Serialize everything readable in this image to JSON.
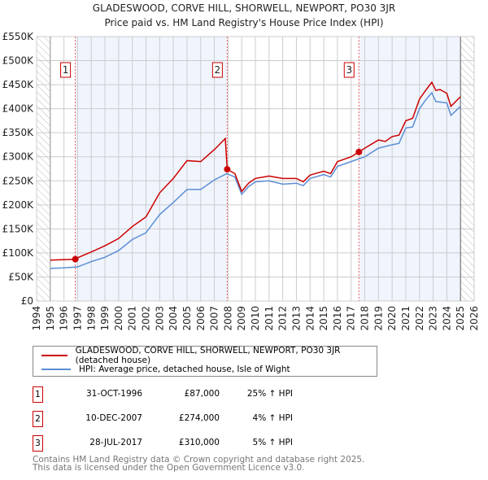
{
  "chart_data": {
    "type": "line",
    "title": "GLADESWOOD, CORVE HILL, SHORWELL, NEWPORT, PO30 3JR",
    "subtitle": "Price paid vs. HM Land Registry's House Price Index (HPI)",
    "xlim": [
      1994,
      2026
    ],
    "ylim": [
      0,
      550000
    ],
    "yticks": [
      0,
      50000,
      100000,
      150000,
      200000,
      250000,
      300000,
      350000,
      400000,
      450000,
      500000,
      550000
    ],
    "ytick_labels": [
      "£0",
      "£50K",
      "£100K",
      "£150K",
      "£200K",
      "£250K",
      "£300K",
      "£350K",
      "£400K",
      "£450K",
      "£500K",
      "£550K"
    ],
    "xticks": [
      1994,
      1995,
      1996,
      1997,
      1998,
      1999,
      2000,
      2001,
      2002,
      2003,
      2004,
      2005,
      2006,
      2007,
      2008,
      2009,
      2010,
      2011,
      2012,
      2013,
      2014,
      2015,
      2016,
      2017,
      2018,
      2019,
      2020,
      2021,
      2022,
      2023,
      2024,
      2025,
      2026
    ],
    "grid": true,
    "legend_position": "below",
    "series": [
      {
        "name": "GLADESWOOD, CORVE HILL, SHORWELL, NEWPORT, PO30 3JR (detached house)",
        "color": "#cc0000",
        "x": [
          1995,
          1996,
          1996.83,
          1997,
          1998,
          1999,
          2000,
          2001,
          2002,
          2003,
          2004,
          2005,
          2006,
          2007,
          2007.8,
          2007.94,
          2008.5,
          2009,
          2009.5,
          2010,
          2011,
          2012,
          2013,
          2013.5,
          2014,
          2015,
          2015.5,
          2016,
          2017,
          2017.57,
          2018,
          2019,
          2019.5,
          2020,
          2020.5,
          2021,
          2021.5,
          2022,
          2022.5,
          2022.9,
          2023.2,
          2023.5,
          2024,
          2024.3,
          2025
        ],
        "y": [
          85000,
          86000,
          87000,
          90000,
          102000,
          115000,
          130000,
          155000,
          175000,
          225000,
          255000,
          292000,
          290000,
          315000,
          338000,
          274000,
          265000,
          228000,
          245000,
          255000,
          260000,
          255000,
          255000,
          248000,
          262000,
          270000,
          265000,
          290000,
          300000,
          310000,
          318000,
          335000,
          332000,
          342000,
          345000,
          375000,
          380000,
          420000,
          440000,
          455000,
          438000,
          440000,
          432000,
          405000,
          425000
        ]
      },
      {
        "name": "HPI: Average price, detached house, Isle of Wight",
        "color": "#5b8fd4",
        "x": [
          1995,
          1996,
          1997,
          1998,
          1999,
          2000,
          2001,
          2002,
          2003,
          2004,
          2005,
          2006,
          2007,
          2007.9,
          2008.5,
          2009,
          2009.5,
          2010,
          2011,
          2012,
          2013,
          2013.5,
          2014,
          2015,
          2015.5,
          2016,
          2017,
          2018,
          2019,
          2020,
          2020.5,
          2021,
          2021.5,
          2022,
          2022.5,
          2022.9,
          2023.2,
          2024,
          2024.3,
          2025
        ],
        "y": [
          68000,
          69000,
          71000,
          82000,
          91000,
          105000,
          128000,
          142000,
          180000,
          205000,
          232000,
          232000,
          252000,
          265000,
          258000,
          222000,
          238000,
          248000,
          250000,
          243000,
          245000,
          240000,
          255000,
          263000,
          258000,
          280000,
          290000,
          300000,
          318000,
          325000,
          328000,
          360000,
          362000,
          400000,
          420000,
          433000,
          415000,
          412000,
          386000,
          405000
        ]
      }
    ],
    "sales": [
      {
        "label": "1",
        "x": 1996.83,
        "y": 87000,
        "date": "31-OCT-1996",
        "price": "£87,000",
        "hpi": "25% ↑ HPI"
      },
      {
        "label": "2",
        "x": 2007.94,
        "y": 274000,
        "date": "10-DEC-2007",
        "price": "£274,000",
        "hpi": "4% ↑ HPI"
      },
      {
        "label": "3",
        "x": 2017.57,
        "y": 310000,
        "date": "28-JUL-2017",
        "price": "£310,000",
        "hpi": "5% ↑ HPI"
      }
    ]
  },
  "footer": {
    "line1": "Contains HM Land Registry data © Crown copyright and database right 2025.",
    "line2": "This data is licensed under the Open Government Licence v3.0."
  }
}
